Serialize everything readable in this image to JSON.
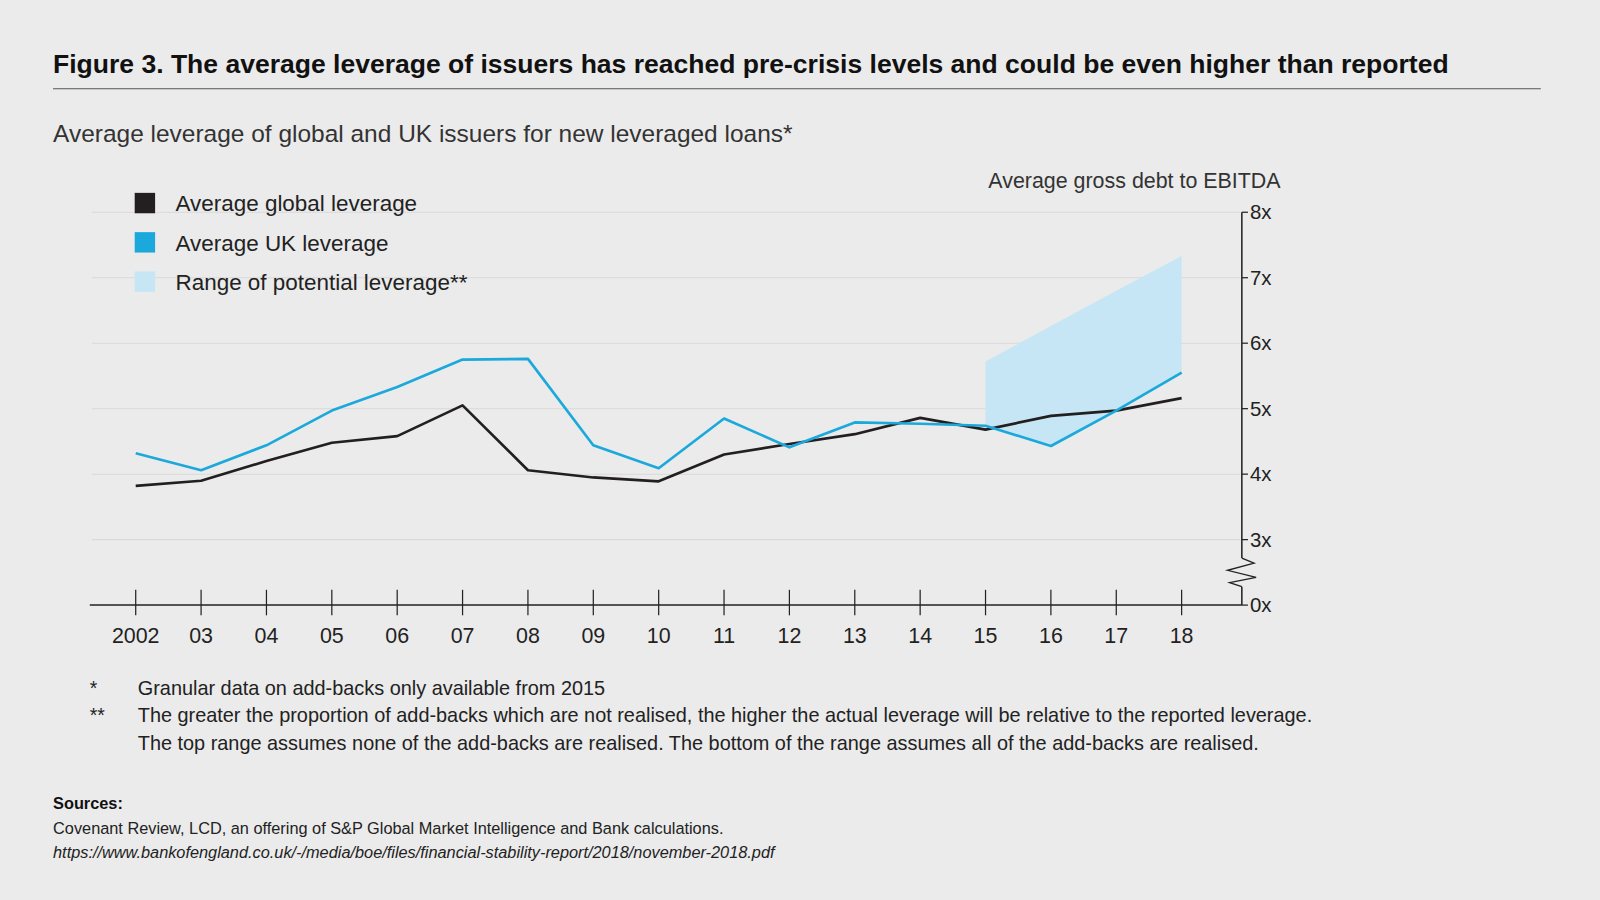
{
  "chart_data": {
    "type": "line",
    "title": "Figure 3. The average leverage of issuers has reached pre-crisis levels and could be even higher than reported",
    "subtitle": "Average leverage of global and UK issuers for new leveraged loans*",
    "y_label": "Average gross debt to EBITDA",
    "categories": [
      "2002",
      "03",
      "04",
      "05",
      "06",
      "07",
      "08",
      "09",
      "10",
      "11",
      "12",
      "13",
      "14",
      "15",
      "16",
      "17",
      "18"
    ],
    "series": [
      {
        "name": "Average global leverage",
        "type": "line",
        "color": "#231f20",
        "values": [
          3.82,
          3.9,
          4.2,
          4.48,
          4.58,
          5.05,
          4.06,
          3.95,
          3.89,
          4.3,
          4.46,
          4.61,
          4.86,
          4.68,
          4.89,
          4.97,
          5.16
        ]
      },
      {
        "name": "Average UK leverage",
        "type": "line",
        "color": "#1ba9dc",
        "values": [
          4.32,
          4.06,
          4.44,
          4.97,
          5.33,
          5.75,
          5.76,
          4.44,
          4.09,
          4.85,
          4.41,
          4.79,
          4.77,
          4.74,
          4.43,
          4.97,
          5.55
        ]
      },
      {
        "name": "Range of potential leverage**",
        "type": "area",
        "color": "#c6e5f5",
        "values": [
          null,
          null,
          null,
          null,
          null,
          null,
          null,
          null,
          null,
          null,
          null,
          null,
          null,
          5.72,
          6.26,
          6.8,
          7.33
        ],
        "low": [
          null,
          null,
          null,
          null,
          null,
          null,
          null,
          null,
          null,
          null,
          null,
          null,
          null,
          4.74,
          4.43,
          4.97,
          5.55
        ]
      }
    ],
    "ylim": [
      0,
      8
    ],
    "yticks": [
      {
        "value": 0,
        "label": "0x"
      },
      {
        "value": 3,
        "label": "3x"
      },
      {
        "value": 4,
        "label": "4x"
      },
      {
        "value": 5,
        "label": "5x"
      },
      {
        "value": 6,
        "label": "6x"
      },
      {
        "value": 7,
        "label": "7x"
      },
      {
        "value": 8,
        "label": "8x"
      }
    ],
    "grid": true,
    "legend": "top-left",
    "notes": [
      {
        "symbol": "*",
        "lines": [
          "Granular data on add-backs only available from 2015"
        ]
      },
      {
        "symbol": "**",
        "lines": [
          "The greater the proportion of add-backs which are not realised, the higher the actual leverage will be relative to the reported leverage.",
          "The top range assumes none of the add-backs are realised. The bottom of the range assumes all of the add-backs are realised."
        ]
      }
    ],
    "sources": {
      "label": "Sources:",
      "text": "Covenant Review, LCD, an offering of S&P Global Market Intelligence and Bank calculations.",
      "url": "https://www.bankofengland.co.uk/-/media/boe/files/financial-stability-report/2018/november-2018.pdf"
    }
  }
}
